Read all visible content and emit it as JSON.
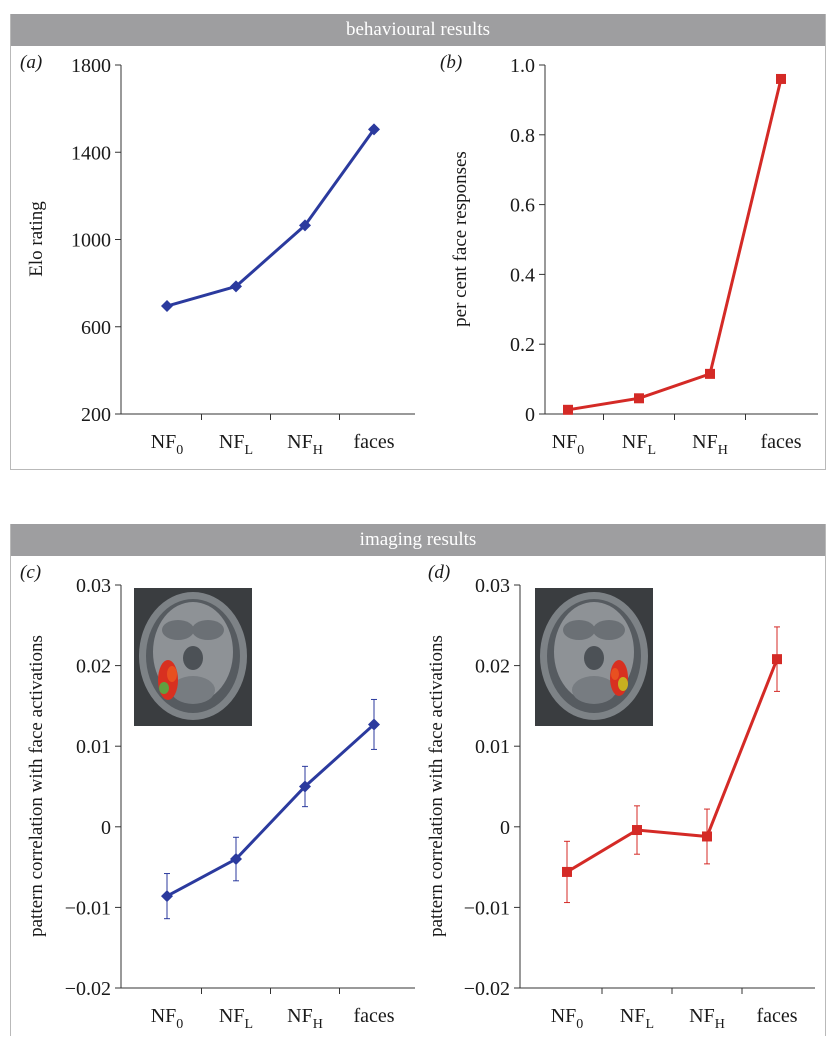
{
  "sections": [
    {
      "id": "behav",
      "title": "behavioural results"
    },
    {
      "id": "imaging",
      "title": "imaging results"
    }
  ],
  "colors": {
    "blue": "#2b3a9e",
    "red": "#d42a26",
    "header_bg": "#9e9ea0"
  },
  "chart_data": [
    {
      "panel": "(a)",
      "type": "line",
      "categories": [
        "NF_0",
        "NF_L",
        "NF_H",
        "faces"
      ],
      "category_labels": [
        {
          "base": "NF",
          "sub": "0"
        },
        {
          "base": "NF",
          "sub": "L"
        },
        {
          "base": "NF",
          "sub": "H"
        },
        {
          "base": "faces",
          "sub": ""
        }
      ],
      "series": [
        {
          "values": [
            695,
            785,
            1065,
            1505
          ]
        }
      ],
      "marker": "diamond",
      "color": "#2b3a9e",
      "ylabel": "Elo rating",
      "ylim": [
        200,
        1800
      ],
      "yticks": [
        200,
        600,
        1000,
        1400,
        1800
      ],
      "ytick_labels": [
        "200",
        "600",
        "1000",
        "1400",
        "1800"
      ],
      "grid": false
    },
    {
      "panel": "(b)",
      "type": "line",
      "categories": [
        "NF_0",
        "NF_L",
        "NF_H",
        "faces"
      ],
      "category_labels": [
        {
          "base": "NF",
          "sub": "0"
        },
        {
          "base": "NF",
          "sub": "L"
        },
        {
          "base": "NF",
          "sub": "H"
        },
        {
          "base": "faces",
          "sub": ""
        }
      ],
      "series": [
        {
          "values": [
            0.012,
            0.045,
            0.115,
            0.96
          ]
        }
      ],
      "marker": "square",
      "color": "#d42a26",
      "ylabel": "per cent face responses",
      "ylim": [
        0,
        1.0
      ],
      "yticks": [
        0,
        0.2,
        0.4,
        0.6,
        0.8,
        1.0
      ],
      "ytick_labels": [
        "0",
        "0.2",
        "0.4",
        "0.6",
        "0.8",
        "1.0"
      ],
      "grid": false
    },
    {
      "panel": "(c)",
      "type": "line",
      "categories": [
        "NF_0",
        "NF_L",
        "NF_H",
        "faces"
      ],
      "category_labels": [
        {
          "base": "NF",
          "sub": "0"
        },
        {
          "base": "NF",
          "sub": "L"
        },
        {
          "base": "NF",
          "sub": "H"
        },
        {
          "base": "faces",
          "sub": ""
        }
      ],
      "series": [
        {
          "values": [
            -0.0086,
            -0.004,
            0.005,
            0.0127
          ],
          "error": [
            0.0028,
            0.0027,
            0.0025,
            0.0031
          ]
        }
      ],
      "marker": "diamond",
      "color": "#2b3a9e",
      "ylabel": "pattern correlation with face activations",
      "ylim": [
        -0.02,
        0.03
      ],
      "yticks": [
        -0.02,
        -0.01,
        0,
        0.01,
        0.02,
        0.03
      ],
      "ytick_labels": [
        "−0.02",
        "−0.01",
        "0",
        "0.01",
        "0.02",
        "0.03"
      ],
      "inset": "brain-scan-axial",
      "grid": false
    },
    {
      "panel": "(d)",
      "type": "line",
      "categories": [
        "NF_0",
        "NF_L",
        "NF_H",
        "faces"
      ],
      "category_labels": [
        {
          "base": "NF",
          "sub": "0"
        },
        {
          "base": "NF",
          "sub": "L"
        },
        {
          "base": "NF",
          "sub": "H"
        },
        {
          "base": "faces",
          "sub": ""
        }
      ],
      "series": [
        {
          "values": [
            -0.0056,
            -0.0004,
            -0.0012,
            0.0208
          ],
          "error": [
            0.0038,
            0.003,
            0.0034,
            0.004
          ]
        }
      ],
      "marker": "square",
      "color": "#d42a26",
      "ylabel": "pattern correlation with face activations",
      "ylim": [
        -0.02,
        0.03
      ],
      "yticks": [
        -0.02,
        -0.01,
        0,
        0.01,
        0.02,
        0.03
      ],
      "ytick_labels": [
        "−0.02",
        "−0.01",
        "0",
        "0.01",
        "0.02",
        "0.03"
      ],
      "inset": "brain-scan-axial",
      "grid": false
    }
  ]
}
